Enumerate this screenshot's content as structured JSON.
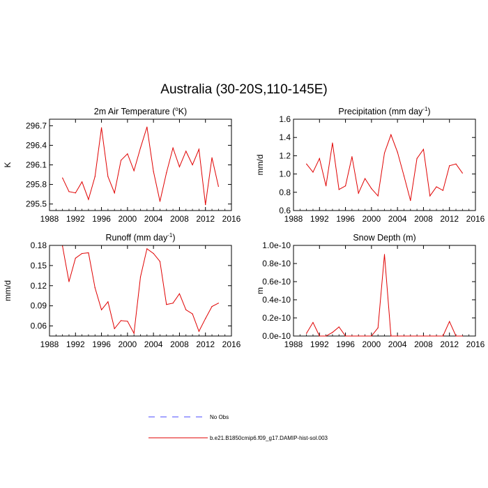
{
  "figure": {
    "title": "Australia (30-20S,110-145E)"
  },
  "legend": {
    "entries": [
      {
        "label": "No Obs",
        "color": "#4a4aff",
        "style": "dashed"
      },
      {
        "label": "b.e21.B1850cmip6.f09_g17.DAMIP-hist-sol.003",
        "color": "#e00000",
        "style": "solid"
      }
    ]
  },
  "chart_data": [
    {
      "type": "line",
      "title": "2m Air Temperature (°K)",
      "title_parts": {
        "prefix": "2m Air Temperature (",
        "sup": "o",
        "suffix": "K)"
      },
      "xlabel": "",
      "ylabel": "K",
      "xlim": [
        1988,
        2016
      ],
      "ylim": [
        295.4,
        296.8
      ],
      "xticks": [
        1988,
        1992,
        1996,
        2000,
        2004,
        2008,
        2012,
        2016
      ],
      "yticks": [
        295.5,
        295.8,
        296.1,
        296.4,
        296.7
      ],
      "ytick_labels": [
        "295.5",
        "295.8",
        "296.1",
        "296.4",
        "296.7"
      ],
      "series": [
        {
          "color": "#e00000",
          "x": [
            1990,
            1991,
            1992,
            1993,
            1994,
            1995,
            1996,
            1997,
            1998,
            1999,
            2000,
            2001,
            2002,
            2003,
            2004,
            2005,
            2006,
            2007,
            2008,
            2009,
            2010,
            2011,
            2012,
            2013,
            2014
          ],
          "y": [
            295.9,
            295.69,
            295.67,
            295.84,
            295.57,
            295.92,
            296.67,
            295.92,
            295.67,
            296.17,
            296.27,
            296.01,
            296.36,
            296.68,
            296.0,
            295.54,
            295.98,
            296.36,
            296.07,
            296.31,
            296.1,
            296.34,
            295.49,
            296.21,
            295.77
          ]
        }
      ]
    },
    {
      "type": "line",
      "title": "Precipitation (mm day-1)",
      "title_parts": {
        "prefix": "Precipitation (mm day",
        "sup": "-1",
        "suffix": ")"
      },
      "xlabel": "",
      "ylabel": "mm/d",
      "xlim": [
        1988,
        2016
      ],
      "ylim": [
        0.6,
        1.6
      ],
      "xticks": [
        1988,
        1992,
        1996,
        2000,
        2004,
        2008,
        2012,
        2016
      ],
      "yticks": [
        0.6,
        0.8,
        1.0,
        1.2,
        1.4,
        1.6
      ],
      "ytick_labels": [
        "0.6",
        "0.8",
        "1.0",
        "1.2",
        "1.4",
        "1.6"
      ],
      "series": [
        {
          "color": "#e00000",
          "x": [
            1990,
            1991,
            1992,
            1993,
            1994,
            1995,
            1996,
            1997,
            1998,
            1999,
            2000,
            2001,
            2002,
            2003,
            2004,
            2005,
            2006,
            2007,
            2008,
            2009,
            2010,
            2011,
            2012,
            2013,
            2014
          ],
          "y": [
            1.11,
            1.02,
            1.17,
            0.87,
            1.34,
            0.83,
            0.87,
            1.19,
            0.79,
            0.95,
            0.84,
            0.76,
            1.23,
            1.43,
            1.24,
            0.98,
            0.71,
            1.17,
            1.27,
            0.76,
            0.86,
            0.82,
            1.09,
            1.11,
            1.01
          ]
        }
      ]
    },
    {
      "type": "line",
      "title": "Runoff (mm day-1)",
      "title_parts": {
        "prefix": "Runoff (mm day",
        "sup": "-1",
        "suffix": ")"
      },
      "xlabel": "",
      "ylabel": "mm/d",
      "xlim": [
        1988,
        2016
      ],
      "ylim": [
        0.045,
        0.18
      ],
      "xticks": [
        1988,
        1992,
        1996,
        2000,
        2004,
        2008,
        2012,
        2016
      ],
      "yticks": [
        0.06,
        0.09,
        0.12,
        0.15,
        0.18
      ],
      "ytick_labels": [
        "0.06",
        "0.09",
        "0.12",
        "0.15",
        "0.18"
      ],
      "series": [
        {
          "color": "#e00000",
          "x": [
            1990,
            1991,
            1992,
            1993,
            1994,
            1995,
            1996,
            1997,
            1998,
            1999,
            2000,
            2001,
            2002,
            2003,
            2004,
            2005,
            2006,
            2007,
            2008,
            2009,
            2010,
            2011,
            2012,
            2013,
            2014
          ],
          "y": [
            0.179,
            0.126,
            0.161,
            0.168,
            0.169,
            0.117,
            0.084,
            0.096,
            0.056,
            0.068,
            0.067,
            0.049,
            0.133,
            0.175,
            0.168,
            0.156,
            0.092,
            0.094,
            0.108,
            0.084,
            0.078,
            0.052,
            0.071,
            0.089,
            0.094
          ]
        }
      ]
    },
    {
      "type": "line",
      "title": "Snow Depth (m)",
      "title_parts": {
        "prefix": "Snow Depth (m)",
        "sup": "",
        "suffix": ""
      },
      "xlabel": "",
      "ylabel": "m",
      "xlim": [
        1988,
        2016
      ],
      "ylim": [
        0,
        1e-10
      ],
      "xticks": [
        1988,
        1992,
        1996,
        2000,
        2004,
        2008,
        2012,
        2016
      ],
      "yticks": [
        0,
        2e-11,
        4e-11,
        6e-11,
        8e-11,
        1e-10
      ],
      "ytick_labels": [
        "0.0e-10",
        "0.2e-10",
        "0.4e-10",
        "0.6e-10",
        "0.8e-10",
        "1.0e-10"
      ],
      "series": [
        {
          "color": "#e00000",
          "x": [
            1990,
            1991,
            1992,
            1993,
            1994,
            1995,
            1996,
            1997,
            1998,
            1999,
            2000,
            2001,
            2002,
            2003,
            2004,
            2005,
            2006,
            2007,
            2008,
            2009,
            2010,
            2011,
            2012,
            2013,
            2014
          ],
          "y": [
            3e-12,
            1.5e-11,
            0,
            0,
            4e-12,
            1e-11,
            0,
            0,
            0,
            0,
            0,
            9e-12,
            9e-11,
            0,
            0,
            0,
            0,
            0,
            0,
            0,
            0,
            0,
            1.6e-11,
            0,
            0
          ]
        }
      ]
    }
  ]
}
